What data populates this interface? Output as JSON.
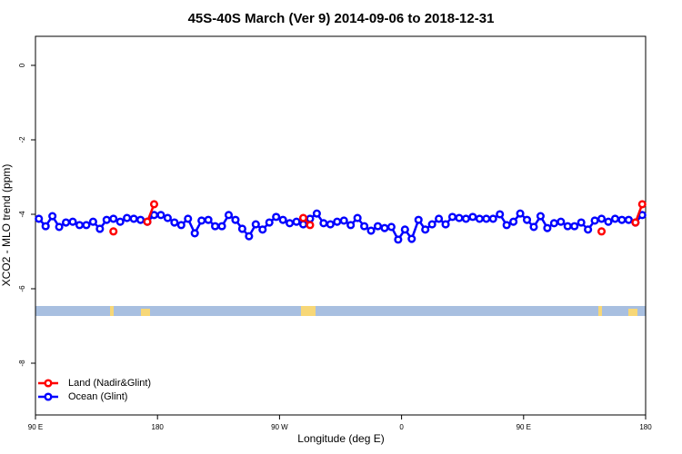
{
  "chart_data": {
    "type": "line",
    "title": "45S-40S March (Ver 9)   2014-09-06 to 2018-12-31",
    "x_label": "Longitude (deg E)",
    "y_label": "XCO2 - MLO trend (ppm)",
    "xlim": [
      90,
      540
    ],
    "xticks": [
      {
        "value": 90,
        "label": "90 E"
      },
      180,
      {
        "value": 270,
        "label": "90 W"
      },
      {
        "value": 360,
        "label": "0"
      },
      {
        "value": 450,
        "label": "90 E"
      },
      {
        "value": 540,
        "label": "180"
      }
    ],
    "ylim": [
      -9.39,
      0.78
    ],
    "yticks": [
      0,
      -2,
      -4,
      -6,
      -8
    ],
    "legend": "bottom-left",
    "x": [
      92.5,
      97.5,
      102.5,
      107.5,
      112.5,
      117.5,
      122.5,
      127.5,
      132.5,
      137.5,
      142.5,
      147.5,
      152.5,
      157.5,
      162.5,
      167.5,
      172.5,
      177.5,
      182.5,
      187.5,
      192.5,
      197.5,
      202.5,
      207.5,
      212.5,
      217.5,
      222.5,
      227.5,
      232.5,
      237.5,
      242.5,
      247.5,
      252.5,
      257.5,
      262.5,
      267.5,
      272.5,
      277.5,
      282.5,
      287.5,
      292.5,
      297.5,
      302.5,
      307.5,
      312.5,
      317.5,
      322.5,
      327.5,
      332.5,
      337.5,
      342.5,
      347.5,
      352.5,
      357.5,
      362.5,
      367.5,
      372.5,
      377.5,
      382.5,
      387.5,
      392.5,
      397.5,
      402.5,
      407.5,
      412.5,
      417.5,
      422.5,
      427.5,
      432.5,
      437.5,
      442.5,
      447.5,
      452.5,
      457.5,
      462.5,
      467.5,
      472.5,
      477.5,
      482.5,
      487.5,
      492.5,
      497.5,
      502.5,
      507.5,
      512.5,
      517.5,
      522.5,
      527.5,
      532.5,
      537.5
    ],
    "series": [
      {
        "name": "Ocean (Glint)",
        "color": "#0000ff",
        "values": [
          -4.12,
          -4.32,
          -4.05,
          -4.34,
          -4.22,
          -4.2,
          -4.29,
          -4.29,
          -4.2,
          -4.39,
          -4.15,
          -4.12,
          -4.2,
          -4.1,
          -4.12,
          -4.15,
          -4.2,
          -4.02,
          -4.02,
          -4.1,
          -4.22,
          -4.29,
          -4.12,
          -4.51,
          -4.17,
          -4.15,
          -4.32,
          -4.32,
          -4.02,
          -4.15,
          -4.39,
          -4.59,
          -4.27,
          -4.41,
          -4.22,
          -4.07,
          -4.15,
          -4.24,
          -4.2,
          -4.27,
          -4.12,
          -3.98,
          -4.24,
          -4.27,
          -4.2,
          -4.17,
          -4.29,
          -4.1,
          -4.32,
          -4.44,
          -4.32,
          -4.37,
          -4.34,
          -4.68,
          -4.41,
          -4.66,
          -4.15,
          -4.41,
          -4.27,
          -4.12,
          -4.27,
          -4.07,
          -4.1,
          -4.12,
          -4.07,
          -4.12,
          -4.12,
          -4.12,
          -4.0,
          -4.29,
          -4.2,
          -3.98,
          -4.15,
          -4.34,
          -4.05,
          -4.37,
          -4.24,
          -4.2,
          -4.32,
          -4.32,
          -4.22,
          -4.41,
          -4.17,
          -4.12,
          -4.2,
          -4.12,
          -4.15,
          -4.15,
          -4.22,
          -4.02
        ]
      },
      {
        "name": "Land (Nadir&Glint)",
        "color": "#ff0000",
        "values": [
          null,
          null,
          null,
          null,
          null,
          null,
          null,
          null,
          null,
          null,
          null,
          -4.46,
          null,
          null,
          null,
          null,
          -4.2,
          -3.73,
          null,
          null,
          null,
          null,
          null,
          null,
          null,
          null,
          null,
          null,
          null,
          null,
          null,
          null,
          null,
          null,
          null,
          null,
          null,
          null,
          null,
          -4.1,
          -4.29,
          null,
          null,
          null,
          null,
          null,
          null,
          null,
          null,
          null,
          null,
          null,
          null,
          null,
          null,
          null,
          null,
          null,
          null,
          null,
          null,
          null,
          null,
          null,
          null,
          null,
          null,
          null,
          null,
          null,
          null,
          null,
          null,
          null,
          null,
          null,
          null,
          null,
          null,
          null,
          null,
          null,
          null,
          -4.46,
          null,
          null,
          null,
          null,
          -4.22,
          -3.73
        ]
      }
    ]
  }
}
